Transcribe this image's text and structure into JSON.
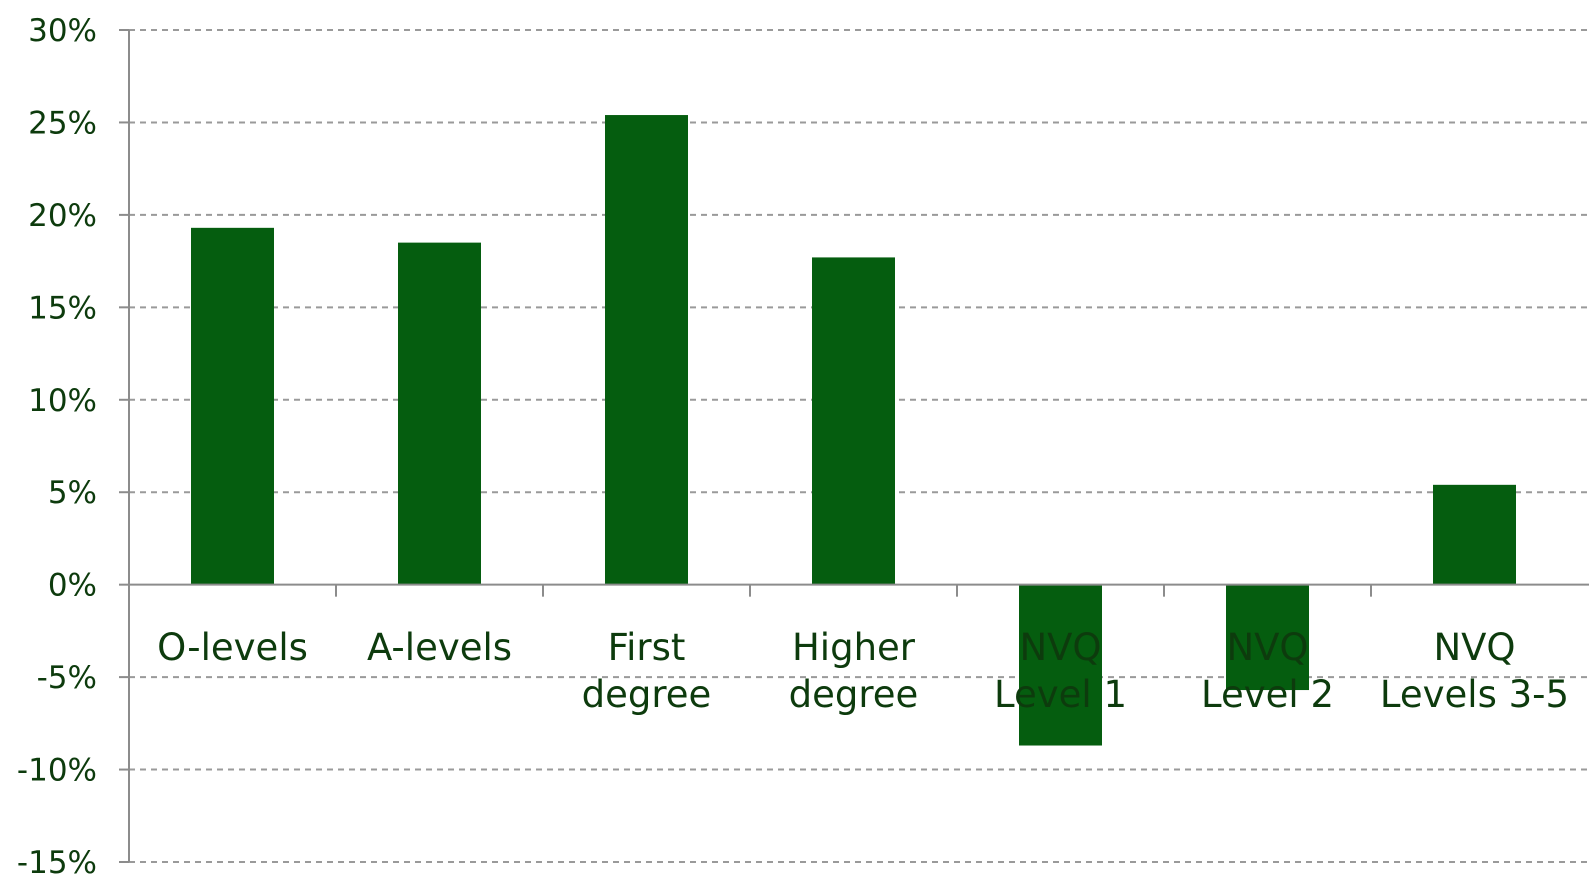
{
  "chart_data": {
    "type": "bar",
    "categories": [
      [
        "O-levels"
      ],
      [
        "A-levels"
      ],
      [
        "First",
        "degree"
      ],
      [
        "Higher",
        "degree"
      ],
      [
        "NVQ",
        "Level 1"
      ],
      [
        "NVQ",
        "Level 2"
      ],
      [
        "NVQ",
        "Levels 3-5"
      ]
    ],
    "values": [
      19.3,
      18.5,
      25.4,
      17.7,
      -8.7,
      -5.7,
      5.4
    ],
    "ylim": [
      -15,
      30
    ],
    "yticks": [
      30,
      25,
      20,
      15,
      10,
      5,
      0,
      -5,
      -10,
      -15
    ],
    "ytick_labels": [
      "30%",
      "25%",
      "20%",
      "15%",
      "10%",
      "5%",
      "0%",
      "-5%",
      "-10%",
      "-15%"
    ],
    "grid": true,
    "grid_style": "dashed",
    "title": "",
    "xlabel": "",
    "ylabel": "",
    "colors": {
      "bar": "#055d0f",
      "text": "#0d3b0d",
      "grid": "#9a9a9a",
      "axis": "#8c8c8c"
    }
  }
}
